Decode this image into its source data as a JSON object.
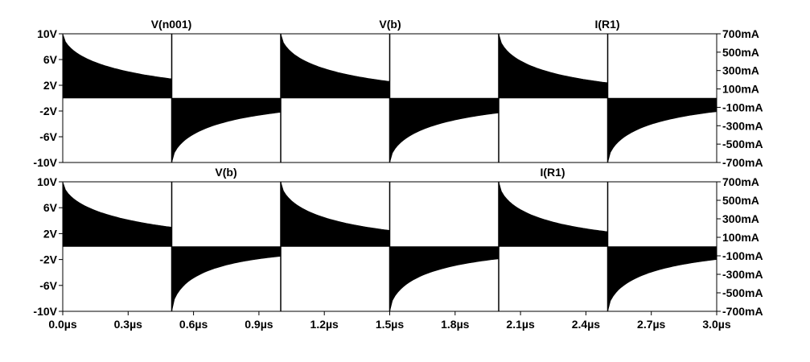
{
  "chart_data": [
    {
      "type": "line",
      "pane": "top",
      "trace_labels": [
        "V(n001)",
        "V(b)",
        "I(R1)"
      ],
      "left_axis": {
        "ticks": [
          10,
          6,
          2,
          -2,
          -6,
          -10
        ],
        "tick_labels": [
          "10V",
          "6V",
          "2V",
          "-2V",
          "-6V",
          "-10V"
        ],
        "ylim": [
          -10,
          10
        ]
      },
      "right_axis": {
        "ticks": [
          700,
          500,
          300,
          100,
          -100,
          -300,
          -500,
          -700
        ],
        "tick_labels": [
          "700mA",
          "500mA",
          "300mA",
          "100mA",
          "-100mA",
          "-300mA",
          "-500mA",
          "-700mA"
        ],
        "ylim": [
          -700,
          700
        ]
      },
      "xlim": [
        0,
        3
      ],
      "series": [
        {
          "segments": [
            {
              "x0": 0.0,
              "x1": 0.5,
              "y_start": 10,
              "y_end": 3,
              "polarity": 1
            },
            {
              "x0": 0.5,
              "x1": 1.0,
              "y_start": -10,
              "y_end": -2.2,
              "polarity": -1
            },
            {
              "x0": 1.0,
              "x1": 1.5,
              "y_start": 10,
              "y_end": 2.6,
              "polarity": 1
            },
            {
              "x0": 1.5,
              "x1": 2.0,
              "y_start": -10,
              "y_end": -2.3,
              "polarity": -1
            },
            {
              "x0": 2.0,
              "x1": 2.5,
              "y_start": 10,
              "y_end": 2.4,
              "polarity": 1
            },
            {
              "x0": 2.5,
              "x1": 3.0,
              "y_start": -10,
              "y_end": -2.1,
              "polarity": -1
            }
          ]
        }
      ]
    },
    {
      "type": "line",
      "pane": "bottom",
      "trace_labels": [
        "V(b)",
        "I(R1)"
      ],
      "left_axis": {
        "ticks": [
          10,
          6,
          2,
          -2,
          -6,
          -10
        ],
        "tick_labels": [
          "10V",
          "6V",
          "2V",
          "-2V",
          "-6V",
          "-10V"
        ],
        "ylim": [
          -10,
          10
        ]
      },
      "right_axis": {
        "ticks": [
          700,
          500,
          300,
          100,
          -100,
          -300,
          -500,
          -700
        ],
        "tick_labels": [
          "700mA",
          "500mA",
          "300mA",
          "100mA",
          "-100mA",
          "-300mA",
          "-500mA",
          "-700mA"
        ],
        "ylim": [
          -700,
          700
        ]
      },
      "xlim": [
        0,
        3
      ],
      "x_ticks": [
        0,
        0.3,
        0.6,
        0.9,
        1.2,
        1.5,
        1.8,
        2.1,
        2.4,
        2.7,
        3.0
      ],
      "x_tick_labels": [
        "0.0µs",
        "0.3µs",
        "0.6µs",
        "0.9µs",
        "1.2µs",
        "1.5µs",
        "1.8µs",
        "2.1µs",
        "2.4µs",
        "2.7µs",
        "3.0µs"
      ],
      "series": [
        {
          "segments": [
            {
              "x0": 0.0,
              "x1": 0.5,
              "y_start": 10,
              "y_end": 3,
              "polarity": 1
            },
            {
              "x0": 0.5,
              "x1": 1.0,
              "y_start": -10,
              "y_end": -1.5,
              "polarity": -1
            },
            {
              "x0": 1.0,
              "x1": 1.5,
              "y_start": 10,
              "y_end": 2.5,
              "polarity": 1
            },
            {
              "x0": 1.5,
              "x1": 2.0,
              "y_start": -10,
              "y_end": -1.9,
              "polarity": -1
            },
            {
              "x0": 2.0,
              "x1": 2.5,
              "y_start": 10,
              "y_end": 2.3,
              "polarity": 1
            },
            {
              "x0": 2.5,
              "x1": 3.0,
              "y_start": -10,
              "y_end": -2.0,
              "polarity": -1
            }
          ]
        }
      ]
    }
  ]
}
